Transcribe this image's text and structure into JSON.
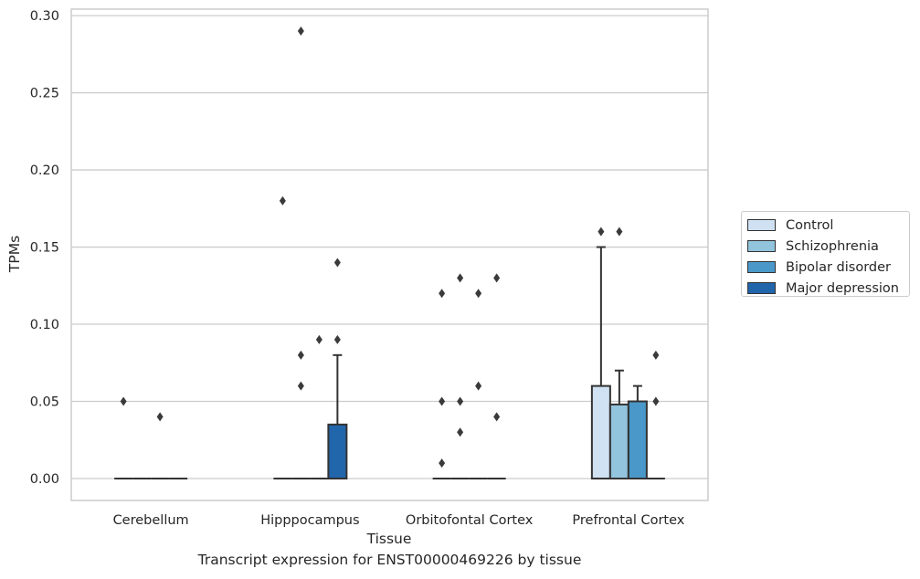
{
  "chart_data": {
    "type": "box",
    "title": "",
    "xlabel": "Tissue",
    "ylabel": "TPMs",
    "ylim": [
      -0.014,
      0.305
    ],
    "yticks": [
      0.0,
      0.05,
      0.1,
      0.15,
      0.2,
      0.25,
      0.3
    ],
    "ytick_labels": [
      "0.00",
      "0.05",
      "0.10",
      "0.15",
      "0.20",
      "0.25",
      "0.30"
    ],
    "grid": true,
    "legend_position": "right",
    "categories": [
      "Cerebellum",
      "Hipppocampus",
      "Orbitofontal Cortex",
      "Prefrontal Cortex"
    ],
    "series": [
      {
        "name": "Control",
        "color": "#cfe1f2",
        "boxes": [
          {
            "q1": 0.0,
            "median": 0.0,
            "q3": 0.0,
            "whislo": 0.0,
            "whishi": 0.0,
            "fliers": [
              0.05
            ]
          },
          {
            "q1": 0.0,
            "median": 0.0,
            "q3": 0.0,
            "whislo": 0.0,
            "whishi": 0.0,
            "fliers": [
              0.18
            ]
          },
          {
            "q1": 0.0,
            "median": 0.0,
            "q3": 0.0,
            "whislo": 0.0,
            "whishi": 0.0,
            "fliers": [
              0.12,
              0.05,
              0.01
            ]
          },
          {
            "q1": 0.0,
            "median": 0.0,
            "q3": 0.06,
            "whislo": 0.0,
            "whishi": 0.15,
            "fliers": [
              0.16
            ]
          }
        ]
      },
      {
        "name": "Schizophrenia",
        "color": "#93c4de",
        "boxes": [
          {
            "q1": 0.0,
            "median": 0.0,
            "q3": 0.0,
            "whislo": 0.0,
            "whishi": 0.0,
            "fliers": []
          },
          {
            "q1": 0.0,
            "median": 0.0,
            "q3": 0.0,
            "whislo": 0.0,
            "whishi": 0.0,
            "fliers": [
              0.29,
              0.08,
              0.06
            ]
          },
          {
            "q1": 0.0,
            "median": 0.0,
            "q3": 0.0,
            "whislo": 0.0,
            "whishi": 0.0,
            "fliers": [
              0.13,
              0.05,
              0.03
            ]
          },
          {
            "q1": 0.0,
            "median": 0.0,
            "q3": 0.048,
            "whislo": 0.0,
            "whishi": 0.07,
            "fliers": [
              0.16
            ]
          }
        ]
      },
      {
        "name": "Bipolar disorder",
        "color": "#4a98c9",
        "boxes": [
          {
            "q1": 0.0,
            "median": 0.0,
            "q3": 0.0,
            "whislo": 0.0,
            "whishi": 0.0,
            "fliers": [
              0.04
            ]
          },
          {
            "q1": 0.0,
            "median": 0.0,
            "q3": 0.0,
            "whislo": 0.0,
            "whishi": 0.0,
            "fliers": [
              0.09
            ]
          },
          {
            "q1": 0.0,
            "median": 0.0,
            "q3": 0.0,
            "whislo": 0.0,
            "whishi": 0.0,
            "fliers": [
              0.12,
              0.06
            ]
          },
          {
            "q1": 0.0,
            "median": 0.0,
            "q3": 0.05,
            "whislo": 0.0,
            "whishi": 0.06,
            "fliers": []
          }
        ]
      },
      {
        "name": "Major depression",
        "color": "#2165ab",
        "boxes": [
          {
            "q1": 0.0,
            "median": 0.0,
            "q3": 0.0,
            "whislo": 0.0,
            "whishi": 0.0,
            "fliers": []
          },
          {
            "q1": 0.0,
            "median": 0.0,
            "q3": 0.035,
            "whislo": 0.0,
            "whishi": 0.08,
            "fliers": [
              0.14,
              0.09
            ]
          },
          {
            "q1": 0.0,
            "median": 0.0,
            "q3": 0.0,
            "whislo": 0.0,
            "whishi": 0.0,
            "fliers": [
              0.13,
              0.04
            ]
          },
          {
            "q1": 0.0,
            "median": 0.0,
            "q3": 0.0,
            "whislo": 0.0,
            "whishi": 0.0,
            "fliers": [
              0.08,
              0.05
            ]
          }
        ]
      }
    ]
  },
  "caption": "Transcript expression for ENST00000469226 by tissue",
  "style": {
    "grid_color": "#cccccc",
    "axis_color": "#cccccc",
    "edge_color": "#333333",
    "text_color": "#262626"
  }
}
